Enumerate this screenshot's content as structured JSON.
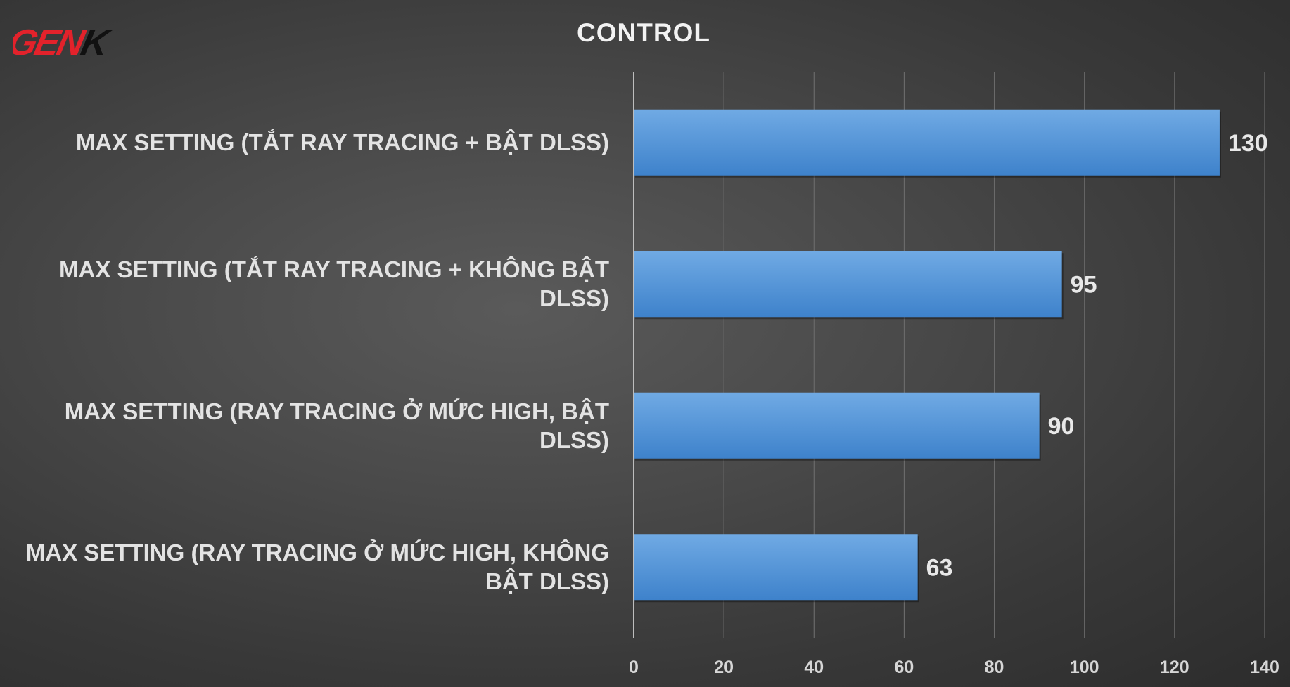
{
  "brand": {
    "logo_text_red": "GEN",
    "logo_text_black": "K",
    "red": "#e3222b",
    "black": "#111111"
  },
  "colors": {
    "bar_top": "#6aa6e2",
    "bar_bottom": "#3f84cc",
    "text": "#e6e6e6",
    "grid": "#6e6e6e"
  },
  "chart_data": {
    "type": "bar",
    "orientation": "horizontal",
    "title": "CONTROL",
    "categories": [
      "MAX SETTING (TẮT RAY TRACING + BẬT DLSS)",
      "MAX SETTING (TẮT RAY TRACING + KHÔNG BẬT DLSS)",
      "MAX SETTING (RAY TRACING Ở MỨC HIGH, BẬT DLSS)",
      "MAX SETTING (RAY TRACING Ở MỨC HIGH, KHÔNG BẬT DLSS)"
    ],
    "values": [
      130,
      95,
      90,
      63
    ],
    "data_labels": [
      "130",
      "95",
      "90",
      "63"
    ],
    "xlabel": "",
    "ylabel": "",
    "xlim": [
      0,
      140
    ],
    "xticks": [
      0,
      20,
      40,
      60,
      80,
      100,
      120,
      140
    ],
    "xtick_labels": [
      "0",
      "20",
      "40",
      "60",
      "80",
      "100",
      "120",
      "140"
    ],
    "grid": true,
    "legend": "none"
  }
}
